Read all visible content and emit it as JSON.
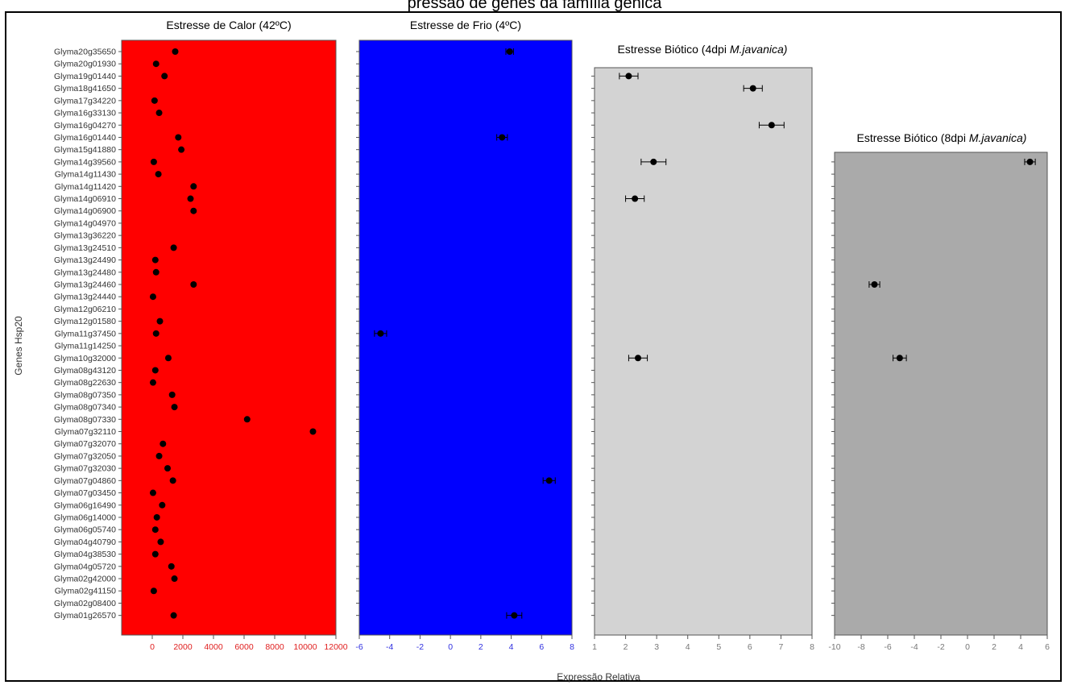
{
  "caption_fragment": "pressão de genes da família gênica",
  "colors": {
    "heat_bg": "#ff0000",
    "cold_bg": "#0000ff",
    "biotic4_bg": "#d3d3d3",
    "biotic8_bg": "#aaaaaa",
    "point": "#000000",
    "heat_ticks": "#e02020",
    "cold_ticks": "#3030e0",
    "biotic_ticks": "#777777"
  },
  "chart_data": {
    "type": "scatter",
    "ylabel": "Genes Hsp20",
    "xlabel": "Expressão Relativa",
    "genes": [
      "Glyma20g35650",
      "Glyma20g01930",
      "Glyma19g01440",
      "Glyma18g41650",
      "Glyma17g34220",
      "Glyma16g33130",
      "Glyma16g04270",
      "Glyma16g01440",
      "Glyma15g41880",
      "Glyma14g39560",
      "Glyma14g11430",
      "Glyma14g11420",
      "Glyma14g06910",
      "Glyma14g06900",
      "Glyma14g04970",
      "Glyma13g36220",
      "Glyma13g24510",
      "Glyma13g24490",
      "Glyma13g24480",
      "Glyma13g24460",
      "Glyma13g24440",
      "Glyma12g06210",
      "Glyma12g01580",
      "Glyma11g37450",
      "Glyma11g14250",
      "Glyma10g32000",
      "Glyma08g43120",
      "Glyma08g22630",
      "Glyma08g07350",
      "Glyma08g07340",
      "Glyma08g07330",
      "Glyma07g32110",
      "Glyma07g32070",
      "Glyma07g32050",
      "Glyma07g32030",
      "Glyma07g04860",
      "Glyma07g03450",
      "Glyma06g16490",
      "Glyma06g14000",
      "Glyma06g05740",
      "Glyma04g40790",
      "Glyma04g38530",
      "Glyma04g05720",
      "Glyma02g42000",
      "Glyma02g41150",
      "Glyma02g08400",
      "Glyma01g26570"
    ],
    "panels": [
      {
        "title_main": "Estresse de Calor (42ºC)",
        "title_italic": "",
        "title_suffix": "",
        "xlim": [
          -2000,
          12000
        ],
        "xticks": [
          0,
          2000,
          4000,
          6000,
          8000,
          10000,
          12000
        ],
        "tick_labels": [
          "0",
          "2000",
          "4000",
          "6000",
          "8000",
          "10000",
          "12000"
        ],
        "points": [
          {
            "gene": "Glyma20g35650",
            "value": 1500
          },
          {
            "gene": "Glyma20g01930",
            "value": 250
          },
          {
            "gene": "Glyma19g01440",
            "value": 800
          },
          {
            "gene": "Glyma17g34220",
            "value": 150
          },
          {
            "gene": "Glyma16g33130",
            "value": 450
          },
          {
            "gene": "Glyma16g01440",
            "value": 1700
          },
          {
            "gene": "Glyma15g41880",
            "value": 1900
          },
          {
            "gene": "Glyma14g39560",
            "value": 100
          },
          {
            "gene": "Glyma14g11430",
            "value": 400
          },
          {
            "gene": "Glyma14g11420",
            "value": 2700
          },
          {
            "gene": "Glyma14g06910",
            "value": 2500
          },
          {
            "gene": "Glyma14g06900",
            "value": 2700
          },
          {
            "gene": "Glyma13g24510",
            "value": 1400
          },
          {
            "gene": "Glyma13g24490",
            "value": 200
          },
          {
            "gene": "Glyma13g24480",
            "value": 250
          },
          {
            "gene": "Glyma13g24460",
            "value": 2700
          },
          {
            "gene": "Glyma13g24440",
            "value": 50
          },
          {
            "gene": "Glyma12g01580",
            "value": 500
          },
          {
            "gene": "Glyma11g37450",
            "value": 250
          },
          {
            "gene": "Glyma10g32000",
            "value": 1050
          },
          {
            "gene": "Glyma08g43120",
            "value": 200
          },
          {
            "gene": "Glyma08g22630",
            "value": 50
          },
          {
            "gene": "Glyma08g07350",
            "value": 1300
          },
          {
            "gene": "Glyma08g07340",
            "value": 1450
          },
          {
            "gene": "Glyma08g07330",
            "value": 6200
          },
          {
            "gene": "Glyma07g32110",
            "value": 10500
          },
          {
            "gene": "Glyma07g32070",
            "value": 700
          },
          {
            "gene": "Glyma07g32050",
            "value": 450
          },
          {
            "gene": "Glyma07g32030",
            "value": 1000
          },
          {
            "gene": "Glyma07g04860",
            "value": 1350
          },
          {
            "gene": "Glyma07g03450",
            "value": 50
          },
          {
            "gene": "Glyma06g16490",
            "value": 650
          },
          {
            "gene": "Glyma06g14000",
            "value": 300
          },
          {
            "gene": "Glyma06g05740",
            "value": 200
          },
          {
            "gene": "Glyma04g40790",
            "value": 550
          },
          {
            "gene": "Glyma04g38530",
            "value": 200
          },
          {
            "gene": "Glyma04g05720",
            "value": 1250
          },
          {
            "gene": "Glyma02g42000",
            "value": 1450
          },
          {
            "gene": "Glyma02g41150",
            "value": 100
          },
          {
            "gene": "Glyma01g26570",
            "value": 1400
          }
        ]
      },
      {
        "title_main": "Estresse de Frio (4ºC)",
        "title_italic": "",
        "title_suffix": "",
        "xlim": [
          -6,
          8
        ],
        "xticks": [
          -6,
          -4,
          -2,
          0,
          2,
          4,
          6,
          8
        ],
        "tick_labels": [
          "-6",
          "-4",
          "-2",
          "0",
          "2",
          "4",
          "6",
          "8"
        ],
        "points": [
          {
            "gene": "Glyma20g35650",
            "value": 3.9,
            "err": 0.25
          },
          {
            "gene": "Glyma16g01440",
            "value": 3.4,
            "err": 0.35
          },
          {
            "gene": "Glyma11g37450",
            "value": -4.6,
            "err": 0.4
          },
          {
            "gene": "Glyma07g04860",
            "value": 6.5,
            "err": 0.4
          },
          {
            "gene": "Glyma01g26570",
            "value": 4.2,
            "err": 0.5
          }
        ]
      },
      {
        "title_main": "Estresse Biótico (4dpi ",
        "title_italic": "M.javanica",
        "title_suffix": ")",
        "xlim": [
          1,
          8
        ],
        "xticks": [
          1,
          2,
          3,
          4,
          5,
          6,
          7,
          8
        ],
        "tick_labels": [
          "1",
          "2",
          "3",
          "4",
          "5",
          "6",
          "7",
          "8"
        ],
        "points": [
          {
            "gene": "Glyma19g01440",
            "value": 2.1,
            "err": 0.3
          },
          {
            "gene": "Glyma18g41650",
            "value": 6.1,
            "err": 0.3
          },
          {
            "gene": "Glyma16g04270",
            "value": 6.7,
            "err": 0.4
          },
          {
            "gene": "Glyma14g39560",
            "value": 2.9,
            "err": 0.4
          },
          {
            "gene": "Glyma14g06910",
            "value": 2.3,
            "err": 0.3
          },
          {
            "gene": "Glyma10g32000",
            "value": 2.4,
            "err": 0.3
          }
        ]
      },
      {
        "title_main": "Estresse Biótico (8dpi ",
        "title_italic": "M.javanica",
        "title_suffix": ")",
        "xlim": [
          -10,
          6
        ],
        "xticks": [
          -10,
          -8,
          -6,
          -4,
          -2,
          0,
          2,
          4,
          6
        ],
        "tick_labels": [
          "-10",
          "-8",
          "-6",
          "-4",
          "-2",
          "0",
          "2",
          "4",
          "6"
        ],
        "points": [
          {
            "gene": "Glyma14g39560",
            "value": 4.7,
            "err": 0.4
          },
          {
            "gene": "Glyma13g24460",
            "value": -7.0,
            "err": 0.4
          },
          {
            "gene": "Glyma10g32000",
            "value": -5.1,
            "err": 0.5
          }
        ]
      }
    ]
  }
}
